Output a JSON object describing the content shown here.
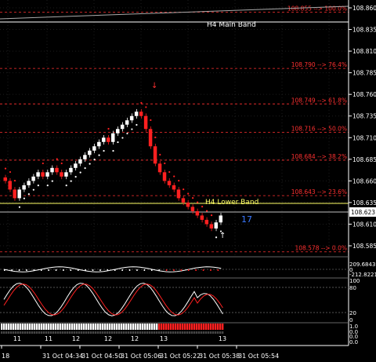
{
  "colors": {
    "background": "#000000",
    "bull": "#ffffff",
    "bear": "#ff2020",
    "fib": "#ff3030",
    "main_band": "#ffffff",
    "lower_band": "#ffff66",
    "countdown": "#3a78ff",
    "grid": "#333333",
    "axis_text": "#ffffff"
  },
  "price_axis": {
    "ticks": [
      "108.860",
      "108.835",
      "108.810",
      "108.785",
      "108.760",
      "108.735",
      "108.710",
      "108.685",
      "108.660",
      "108.635",
      "108.610",
      "108.585"
    ],
    "current_price": "108.623"
  },
  "fib_levels": [
    {
      "label": "108.855 --> 100.0%",
      "price": 108.855
    },
    {
      "label": "108.790 --> 76.4%",
      "price": 108.79
    },
    {
      "label": "108.749 --> 61.8%",
      "price": 108.749
    },
    {
      "label": "108.716 --> 50.0%",
      "price": 108.716
    },
    {
      "label": "108.684 --> 38.2%",
      "price": 108.684
    },
    {
      "label": "108.643 --> 23.6%",
      "price": 108.643
    },
    {
      "label": "108.578 --> 0.0%",
      "price": 108.578
    }
  ],
  "bands": {
    "main_label": "H4 Main Band",
    "lower_label": "H4 Lower Band",
    "main_price": 108.845,
    "lower_price": 108.634
  },
  "countdown": "17",
  "indicator1": {
    "labels": [
      "209.6843",
      "0",
      "-212.8221"
    ]
  },
  "indicator2": {
    "labels": [
      "100",
      "80",
      "20",
      "0"
    ]
  },
  "indicator3": {
    "labels": [
      "1.0",
      "0.0",
      "0.0",
      "0.0"
    ]
  },
  "time_axis": {
    "ticks": [
      "18",
      "31 Oct 04:34",
      "31 Oct 04:50",
      "31 Oct 05:06",
      "31 Oct 05:22",
      "31 Oct 05:38",
      "31 Oct 05:54"
    ],
    "hours": [
      "11",
      "11",
      "12",
      "12",
      "12",
      "13",
      "13"
    ]
  },
  "chart_data": {
    "type": "candlestick",
    "close": [
      108.66,
      108.65,
      108.64,
      108.65,
      108.655,
      108.66,
      108.665,
      108.67,
      108.665,
      108.67,
      108.675,
      108.67,
      108.665,
      108.67,
      108.675,
      108.68,
      108.685,
      108.69,
      108.695,
      108.7,
      108.705,
      108.71,
      108.705,
      108.715,
      108.72,
      108.725,
      108.73,
      108.735,
      108.74,
      108.735,
      108.72,
      108.7,
      108.68,
      108.67,
      108.66,
      108.655,
      108.65,
      108.64,
      108.635,
      108.63,
      108.625,
      108.62,
      108.615,
      108.61,
      108.605,
      108.612,
      108.62
    ]
  }
}
